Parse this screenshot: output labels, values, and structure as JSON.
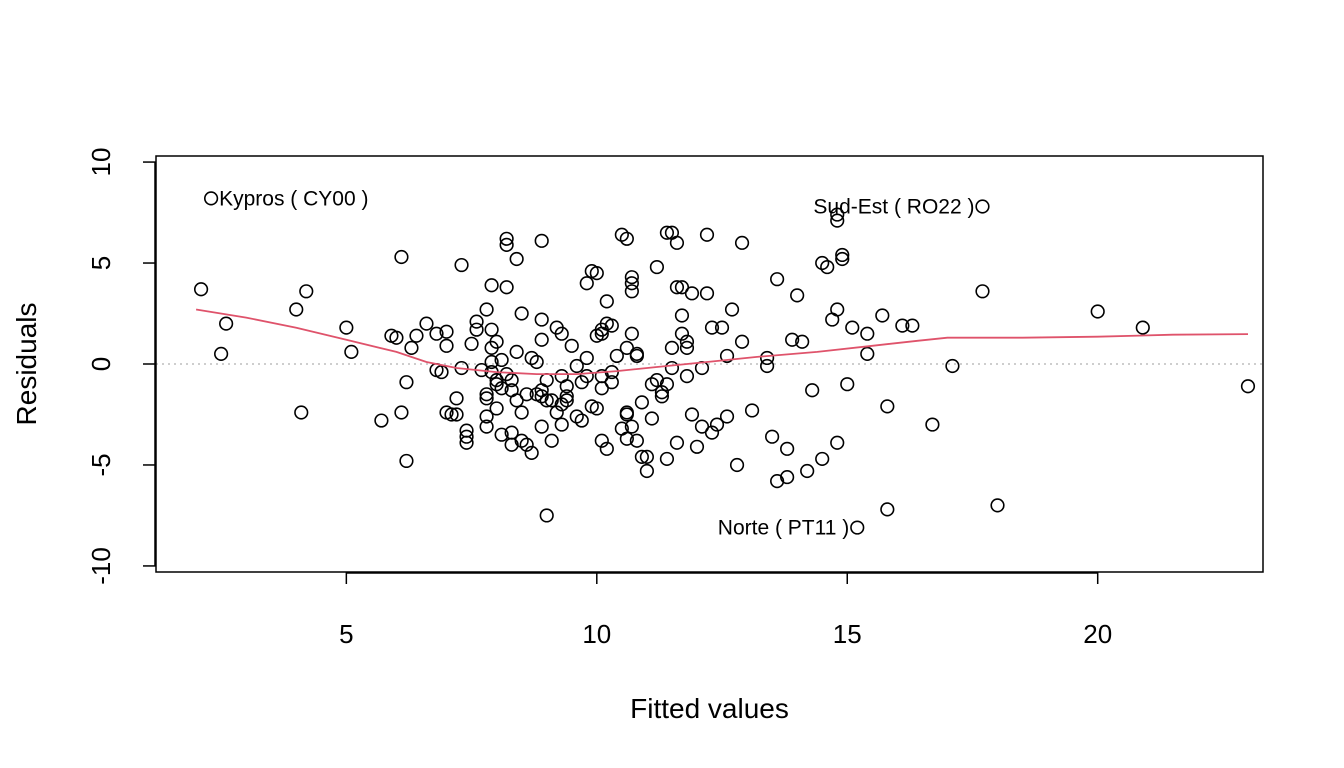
{
  "chart_data": {
    "type": "scatter",
    "xlabel": "Fitted values",
    "ylabel": "Residuals",
    "xlim": [
      1.2,
      23.3
    ],
    "ylim": [
      -10.3,
      10.3
    ],
    "x_ticks": [
      5,
      10,
      15,
      20
    ],
    "y_ticks": [
      -10,
      -5,
      0,
      5,
      10
    ],
    "grid": false,
    "reference_line": {
      "y": 0,
      "style": "dotted",
      "color": "#bdbdbd"
    },
    "smooth_color": "#df536b",
    "points": [
      [
        2.3,
        8.2
      ],
      [
        2.1,
        3.7
      ],
      [
        2.5,
        0.5
      ],
      [
        2.6,
        2.0
      ],
      [
        4.0,
        2.7
      ],
      [
        4.2,
        3.6
      ],
      [
        4.1,
        -2.4
      ],
      [
        5.0,
        1.8
      ],
      [
        5.1,
        0.6
      ],
      [
        5.7,
        -2.8
      ],
      [
        5.9,
        1.4
      ],
      [
        6.0,
        1.3
      ],
      [
        6.1,
        -2.4
      ],
      [
        6.1,
        5.3
      ],
      [
        6.2,
        -0.9
      ],
      [
        6.2,
        -4.8
      ],
      [
        6.3,
        0.8
      ],
      [
        6.4,
        1.4
      ],
      [
        6.6,
        2.0
      ],
      [
        6.8,
        1.5
      ],
      [
        6.8,
        -0.3
      ],
      [
        6.9,
        -0.4
      ],
      [
        7.0,
        1.6
      ],
      [
        7.0,
        0.9
      ],
      [
        7.0,
        -2.4
      ],
      [
        7.1,
        -2.5
      ],
      [
        7.2,
        -2.5
      ],
      [
        7.2,
        -1.7
      ],
      [
        7.3,
        4.9
      ],
      [
        7.3,
        -0.2
      ],
      [
        7.4,
        -3.3
      ],
      [
        7.4,
        -3.6
      ],
      [
        7.4,
        -3.9
      ],
      [
        7.5,
        1.0
      ],
      [
        7.6,
        2.1
      ],
      [
        7.6,
        1.7
      ],
      [
        7.7,
        -0.3
      ],
      [
        7.8,
        -1.5
      ],
      [
        7.8,
        -1.7
      ],
      [
        7.8,
        -2.6
      ],
      [
        7.8,
        -3.1
      ],
      [
        7.8,
        2.7
      ],
      [
        7.9,
        1.7
      ],
      [
        7.9,
        0.8
      ],
      [
        7.9,
        0.1
      ],
      [
        7.9,
        -0.4
      ],
      [
        7.9,
        3.9
      ],
      [
        8.0,
        1.1
      ],
      [
        8.0,
        -0.8
      ],
      [
        8.0,
        -1.0
      ],
      [
        8.0,
        -2.2
      ],
      [
        8.1,
        -1.2
      ],
      [
        8.1,
        0.2
      ],
      [
        8.1,
        -3.5
      ],
      [
        8.2,
        6.2
      ],
      [
        8.2,
        5.9
      ],
      [
        8.2,
        3.8
      ],
      [
        8.2,
        -0.5
      ],
      [
        8.3,
        -0.8
      ],
      [
        8.3,
        -1.3
      ],
      [
        8.3,
        -4.0
      ],
      [
        8.3,
        -3.4
      ],
      [
        8.4,
        5.2
      ],
      [
        8.4,
        0.6
      ],
      [
        8.4,
        -1.8
      ],
      [
        8.5,
        -2.4
      ],
      [
        8.5,
        2.5
      ],
      [
        8.5,
        -3.8
      ],
      [
        8.6,
        -1.5
      ],
      [
        8.6,
        -4.0
      ],
      [
        8.7,
        -4.4
      ],
      [
        8.7,
        0.3
      ],
      [
        8.8,
        0.1
      ],
      [
        8.8,
        -1.5
      ],
      [
        8.9,
        -1.6
      ],
      [
        8.9,
        -1.3
      ],
      [
        8.9,
        2.2
      ],
      [
        8.9,
        1.2
      ],
      [
        8.9,
        6.1
      ],
      [
        8.9,
        -3.1
      ],
      [
        9.0,
        -7.5
      ],
      [
        9.0,
        -1.8
      ],
      [
        9.0,
        -0.8
      ],
      [
        9.1,
        -1.8
      ],
      [
        9.1,
        -3.8
      ],
      [
        9.2,
        1.8
      ],
      [
        9.2,
        -2.4
      ],
      [
        9.3,
        -0.6
      ],
      [
        9.3,
        -3.0
      ],
      [
        9.3,
        -2.0
      ],
      [
        9.3,
        1.5
      ],
      [
        9.4,
        -1.8
      ],
      [
        9.4,
        -1.1
      ],
      [
        9.4,
        -1.6
      ],
      [
        9.5,
        0.9
      ],
      [
        9.6,
        -0.1
      ],
      [
        9.6,
        -2.6
      ],
      [
        9.7,
        -0.9
      ],
      [
        9.7,
        -2.8
      ],
      [
        9.8,
        -0.6
      ],
      [
        9.8,
        4.0
      ],
      [
        9.8,
        0.3
      ],
      [
        9.9,
        4.6
      ],
      [
        9.9,
        -2.1
      ],
      [
        10.0,
        1.4
      ],
      [
        10.0,
        4.5
      ],
      [
        10.0,
        -2.2
      ],
      [
        10.1,
        1.7
      ],
      [
        10.1,
        -1.2
      ],
      [
        10.1,
        -0.6
      ],
      [
        10.1,
        -3.8
      ],
      [
        10.1,
        1.5
      ],
      [
        10.2,
        2.0
      ],
      [
        10.2,
        3.1
      ],
      [
        10.2,
        -4.2
      ],
      [
        10.3,
        -0.9
      ],
      [
        10.3,
        1.9
      ],
      [
        10.3,
        -0.4
      ],
      [
        10.4,
        0.4
      ],
      [
        10.5,
        6.4
      ],
      [
        10.5,
        -3.2
      ],
      [
        10.6,
        6.2
      ],
      [
        10.6,
        -2.4
      ],
      [
        10.6,
        -3.7
      ],
      [
        10.6,
        -2.5
      ],
      [
        10.6,
        0.8
      ],
      [
        10.7,
        4.3
      ],
      [
        10.7,
        3.6
      ],
      [
        10.7,
        4.0
      ],
      [
        10.7,
        1.5
      ],
      [
        10.7,
        -3.1
      ],
      [
        10.8,
        -3.8
      ],
      [
        10.8,
        0.4
      ],
      [
        10.8,
        0.5
      ],
      [
        10.9,
        -1.9
      ],
      [
        10.9,
        -4.6
      ],
      [
        11.0,
        -5.3
      ],
      [
        11.0,
        -4.6
      ],
      [
        11.1,
        -2.7
      ],
      [
        11.1,
        -1.0
      ],
      [
        11.2,
        4.8
      ],
      [
        11.2,
        -0.8
      ],
      [
        11.3,
        -1.6
      ],
      [
        11.3,
        -1.4
      ],
      [
        11.4,
        6.5
      ],
      [
        11.4,
        -1.0
      ],
      [
        11.4,
        -4.7
      ],
      [
        11.5,
        6.5
      ],
      [
        11.5,
        0.8
      ],
      [
        11.5,
        -0.2
      ],
      [
        11.6,
        3.8
      ],
      [
        11.6,
        6.0
      ],
      [
        11.6,
        -3.9
      ],
      [
        11.7,
        3.8
      ],
      [
        11.7,
        2.4
      ],
      [
        11.7,
        1.5
      ],
      [
        11.8,
        1.1
      ],
      [
        11.8,
        0.8
      ],
      [
        11.8,
        -0.6
      ],
      [
        11.9,
        3.5
      ],
      [
        11.9,
        -2.5
      ],
      [
        12.0,
        -4.1
      ],
      [
        12.1,
        -0.2
      ],
      [
        12.1,
        -3.1
      ],
      [
        12.2,
        6.4
      ],
      [
        12.2,
        3.5
      ],
      [
        12.3,
        -3.4
      ],
      [
        12.3,
        1.8
      ],
      [
        12.4,
        -3.0
      ],
      [
        12.5,
        1.8
      ],
      [
        12.6,
        -2.6
      ],
      [
        12.6,
        0.4
      ],
      [
        12.7,
        2.7
      ],
      [
        12.8,
        -5.0
      ],
      [
        12.9,
        6.0
      ],
      [
        12.9,
        1.1
      ],
      [
        13.1,
        -2.3
      ],
      [
        13.4,
        -0.1
      ],
      [
        13.4,
        0.3
      ],
      [
        13.5,
        -3.6
      ],
      [
        13.6,
        4.2
      ],
      [
        13.6,
        -5.8
      ],
      [
        13.8,
        -4.2
      ],
      [
        13.8,
        -5.6
      ],
      [
        13.9,
        1.2
      ],
      [
        14.0,
        3.4
      ],
      [
        14.1,
        1.1
      ],
      [
        14.2,
        -5.3
      ],
      [
        14.3,
        -1.3
      ],
      [
        14.5,
        -4.7
      ],
      [
        14.5,
        5.0
      ],
      [
        14.6,
        4.8
      ],
      [
        14.7,
        2.2
      ],
      [
        14.8,
        7.4
      ],
      [
        14.8,
        7.1
      ],
      [
        14.8,
        2.7
      ],
      [
        14.8,
        -3.9
      ],
      [
        14.9,
        5.4
      ],
      [
        14.9,
        5.2
      ],
      [
        15.0,
        -1.0
      ],
      [
        15.1,
        1.8
      ],
      [
        15.2,
        -8.1
      ],
      [
        15.4,
        1.5
      ],
      [
        15.4,
        0.5
      ],
      [
        15.7,
        2.4
      ],
      [
        15.8,
        -7.2
      ],
      [
        15.8,
        -2.1
      ],
      [
        16.1,
        1.9
      ],
      [
        16.3,
        1.9
      ],
      [
        16.7,
        -3.0
      ],
      [
        17.1,
        -0.1
      ],
      [
        17.7,
        7.8
      ],
      [
        17.7,
        3.6
      ],
      [
        18.0,
        -7.0
      ],
      [
        20.0,
        2.6
      ],
      [
        20.9,
        1.8
      ],
      [
        23.0,
        -1.1
      ]
    ],
    "smooth_line": [
      [
        2.0,
        2.7
      ],
      [
        3.0,
        2.3
      ],
      [
        4.0,
        1.8
      ],
      [
        5.0,
        1.2
      ],
      [
        6.0,
        0.6
      ],
      [
        6.6,
        0.1
      ],
      [
        7.2,
        -0.2
      ],
      [
        8.0,
        -0.4
      ],
      [
        8.8,
        -0.5
      ],
      [
        9.6,
        -0.5
      ],
      [
        10.4,
        -0.35
      ],
      [
        11.2,
        -0.15
      ],
      [
        12.2,
        0.1
      ],
      [
        13.2,
        0.35
      ],
      [
        14.4,
        0.6
      ],
      [
        15.5,
        0.9
      ],
      [
        16.4,
        1.15
      ],
      [
        17.0,
        1.3
      ],
      [
        18.5,
        1.3
      ],
      [
        20.0,
        1.35
      ],
      [
        21.5,
        1.45
      ],
      [
        23.0,
        1.48
      ]
    ],
    "annotations": [
      {
        "text": "Kypros ( CY00 )",
        "x": 2.3,
        "y": 8.2,
        "anchor": "start"
      },
      {
        "text": "Sud-Est ( RO22 )",
        "x": 17.7,
        "y": 7.8,
        "anchor": "end"
      },
      {
        "text": "Norte ( PT11 )",
        "x": 15.2,
        "y": -8.1,
        "anchor": "end"
      }
    ]
  }
}
